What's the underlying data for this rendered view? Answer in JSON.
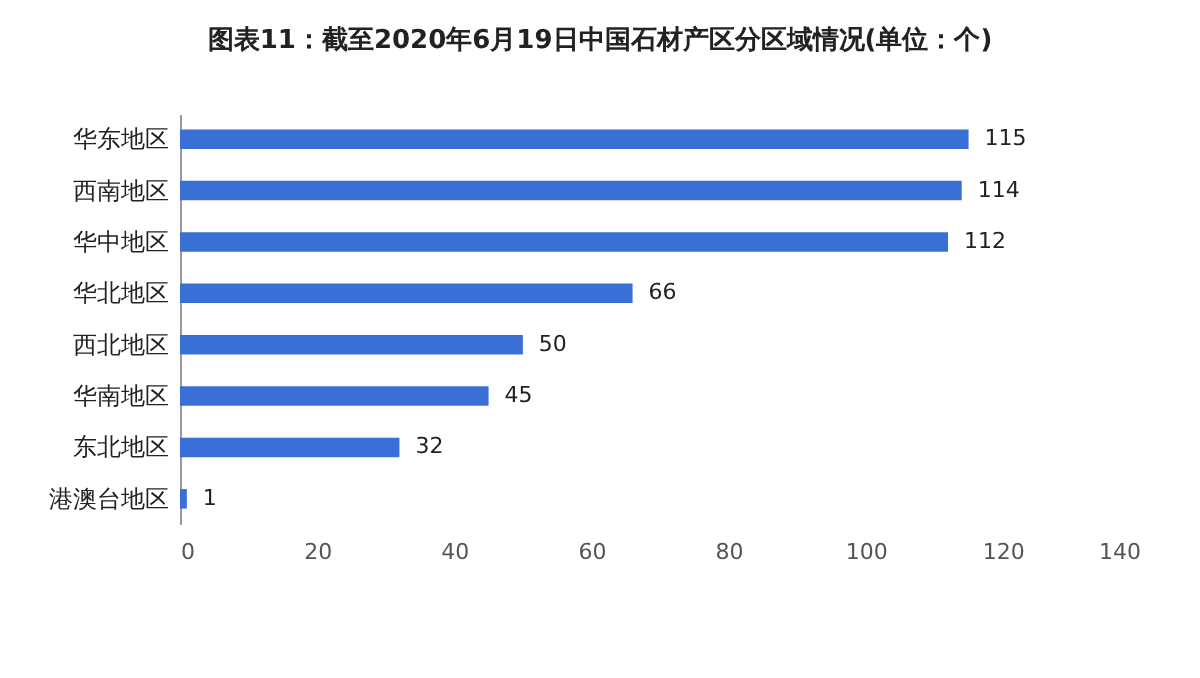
{
  "chart_data": {
    "type": "bar",
    "orientation": "horizontal",
    "title": "图表11：截至2020年6月19日中国石材产区分区域情况(单位：个)",
    "categories": [
      "华东地区",
      "西南地区",
      "华中地区",
      "华北地区",
      "西北地区",
      "华南地区",
      "东北地区",
      "港澳台地区"
    ],
    "values": [
      115,
      114,
      112,
      66,
      50,
      45,
      32,
      1
    ],
    "color": "#3a6fd6",
    "xlim": [
      0,
      140
    ],
    "xticks": [
      0,
      20,
      40,
      60,
      80,
      100,
      120,
      140
    ],
    "data_labels": true,
    "grid": false
  }
}
